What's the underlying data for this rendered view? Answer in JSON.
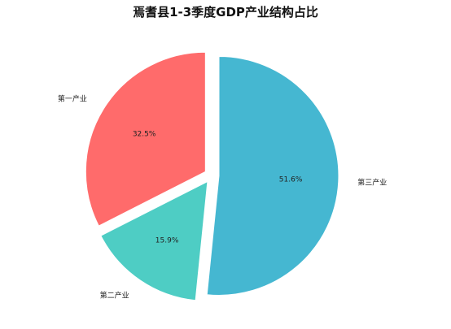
{
  "chart_data": {
    "type": "pie",
    "title": "焉耆县1-3季度GDP产业结构占比",
    "slices": [
      {
        "label": "第三产业",
        "value": 51.6,
        "value_label": "51.6%",
        "color": "#45b7d1"
      },
      {
        "label": "第二产业",
        "value": 15.9,
        "value_label": "15.9%",
        "color": "#4ecdc4"
      },
      {
        "label": "第一产业",
        "value": 32.5,
        "value_label": "32.5%",
        "color": "#ff6b6b"
      }
    ],
    "start_angle": "top, clockwise",
    "exploded": true,
    "legend": "none"
  }
}
